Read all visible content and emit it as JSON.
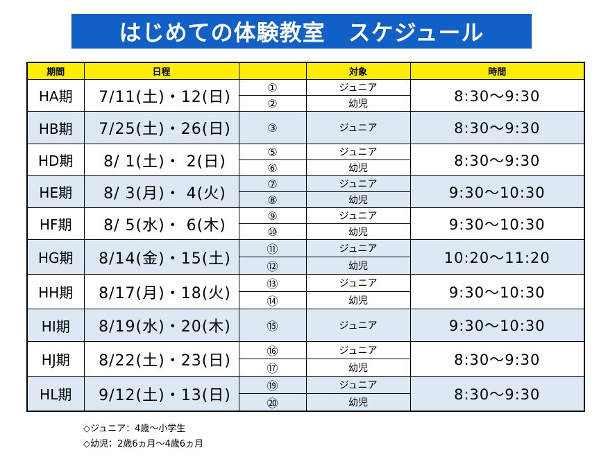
{
  "title": "はじめての体験教室　スケジュール",
  "headers": {
    "period": "期間",
    "dates": "日程",
    "blank": "",
    "target": "対象",
    "time": "時間"
  },
  "rows": [
    {
      "period": "HA期",
      "dates": "7/11(土)・12(日)",
      "time": "8:30〜9:30",
      "shade": "white",
      "sessions": [
        {
          "num": "①",
          "target": "ジュニア"
        },
        {
          "num": "②",
          "target": "幼児"
        }
      ]
    },
    {
      "period": "HB期",
      "dates": "7/25(土)・26(日)",
      "time": "8:30〜9:30",
      "shade": "blue",
      "sessions": [
        {
          "num": "③",
          "target": "ジュニア"
        }
      ]
    },
    {
      "period": "HD期",
      "dates": "8/  1(土)・  2(日)",
      "time": "8:30〜9:30",
      "shade": "white",
      "sessions": [
        {
          "num": "⑤",
          "target": "ジュニア"
        },
        {
          "num": "⑥",
          "target": "幼児"
        }
      ]
    },
    {
      "period": "HE期",
      "dates": "8/  3(月)・  4(火)",
      "time": "9:30〜10:30",
      "shade": "blue",
      "sessions": [
        {
          "num": "⑦",
          "target": "ジュニア"
        },
        {
          "num": "⑧",
          "target": "幼児"
        }
      ]
    },
    {
      "period": "HF期",
      "dates": "8/  5(水)・  6(木)",
      "time": "9:30〜10:30",
      "shade": "white",
      "sessions": [
        {
          "num": "⑨",
          "target": "ジュニア"
        },
        {
          "num": "⑩",
          "target": "幼児"
        }
      ]
    },
    {
      "period": "HG期",
      "dates": "8/14(金)・15(土)",
      "time": "10:20〜11:20",
      "shade": "blue",
      "sessions": [
        {
          "num": "⑪",
          "target": "ジュニア"
        },
        {
          "num": "⑫",
          "target": "幼児"
        }
      ]
    },
    {
      "period": "HH期",
      "dates": "8/17(月)・18(火)",
      "time": "9:30〜10:30",
      "shade": "white",
      "sessions": [
        {
          "num": "⑬",
          "target": "ジュニア"
        },
        {
          "num": "⑭",
          "target": "幼児"
        }
      ]
    },
    {
      "period": "HI期",
      "dates": "8/19(水)・20(木)",
      "time": "9:30〜10:30",
      "shade": "blue",
      "sessions": [
        {
          "num": "⑮",
          "target": "ジュニア"
        }
      ]
    },
    {
      "period": "HJ期",
      "dates": "8/22(土)・23(日)",
      "time": "8:30〜9:30",
      "shade": "white",
      "sessions": [
        {
          "num": "⑯",
          "target": "ジュニア"
        },
        {
          "num": "⑰",
          "target": "幼児"
        }
      ]
    },
    {
      "period": "HL期",
      "dates": "9/12(土)・13(日)",
      "time": "8:30〜9:30",
      "shade": "blue",
      "sessions": [
        {
          "num": "⑲",
          "target": "ジュニア"
        },
        {
          "num": "⑳",
          "target": "幼児"
        }
      ]
    }
  ],
  "notes": [
    "◇ジュニア：4歳〜小学生",
    "◇幼児：2歳6ヵ月〜4歳6ヵ月"
  ],
  "colors": {
    "banner": "#1060c8",
    "header": "#ffee00",
    "band": "#dce8f4"
  }
}
